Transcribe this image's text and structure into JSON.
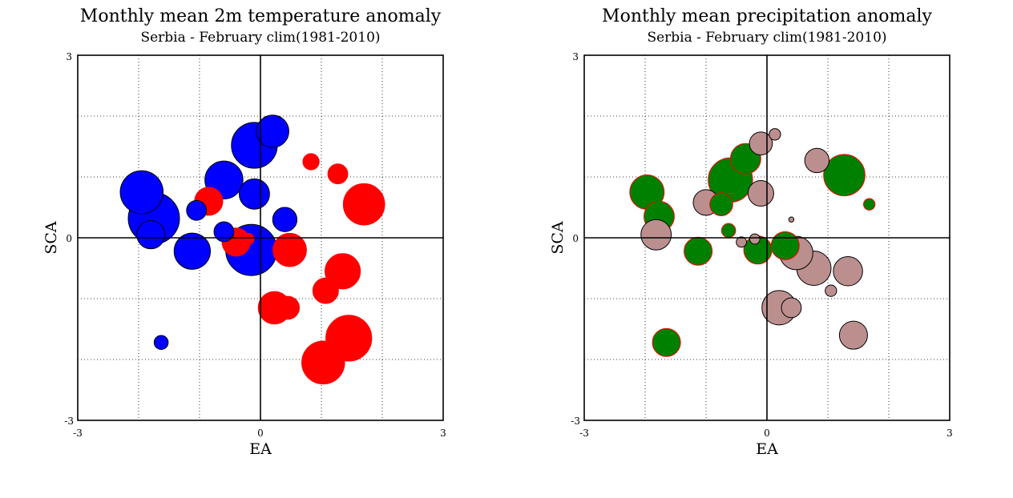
{
  "chart_data": [
    {
      "type": "scatter",
      "title": "Monthly mean 2m temperature anomaly",
      "subtitle": "Serbia - February  clim(1981-2010)",
      "xlabel": "EA",
      "ylabel": "SCA",
      "xlim": [
        -3,
        3
      ],
      "ylim": [
        -3,
        3
      ],
      "x_ticks": [
        "-3",
        "0",
        "3"
      ],
      "y_ticks": [
        "3",
        "0",
        "-3"
      ],
      "grid": true,
      "colors": {
        "negative": "#0000ff",
        "positive": "#ff0000"
      },
      "points": [
        {
          "x": 0.2,
          "y": 1.75,
          "size": 0.8,
          "sign": "negative"
        },
        {
          "x": -0.1,
          "y": 1.52,
          "size": 1.6,
          "sign": "negative"
        },
        {
          "x": -0.6,
          "y": 0.95,
          "size": 1.1,
          "sign": "negative"
        },
        {
          "x": -1.95,
          "y": 0.75,
          "size": 1.4,
          "sign": "negative"
        },
        {
          "x": -0.1,
          "y": 0.72,
          "size": 0.7,
          "sign": "negative"
        },
        {
          "x": -1.75,
          "y": 0.32,
          "size": 2.0,
          "sign": "negative"
        },
        {
          "x": -1.8,
          "y": 0.05,
          "size": 0.6,
          "sign": "negative"
        },
        {
          "x": -1.05,
          "y": 0.45,
          "size": 0.3,
          "sign": "negative"
        },
        {
          "x": 0.4,
          "y": 0.3,
          "size": 0.45,
          "sign": "negative"
        },
        {
          "x": -0.6,
          "y": 0.1,
          "size": 0.3,
          "sign": "negative"
        },
        {
          "x": -1.12,
          "y": -0.22,
          "size": 1.0,
          "sign": "negative"
        },
        {
          "x": -0.15,
          "y": -0.2,
          "size": 2.0,
          "sign": "negative"
        },
        {
          "x": -1.63,
          "y": -1.72,
          "size": 0.15,
          "sign": "negative"
        },
        {
          "x": 0.83,
          "y": 1.25,
          "size": 0.2,
          "sign": "positive"
        },
        {
          "x": 1.27,
          "y": 1.05,
          "size": 0.3,
          "sign": "positive"
        },
        {
          "x": 1.7,
          "y": 0.55,
          "size": 1.3,
          "sign": "positive"
        },
        {
          "x": -0.85,
          "y": 0.6,
          "size": 0.6,
          "sign": "positive"
        },
        {
          "x": -0.4,
          "y": -0.07,
          "size": 0.6,
          "sign": "positive"
        },
        {
          "x": -0.2,
          "y": -0.02,
          "size": 0.1,
          "sign": "positive"
        },
        {
          "x": 0.48,
          "y": -0.2,
          "size": 0.85,
          "sign": "positive"
        },
        {
          "x": 1.35,
          "y": -0.55,
          "size": 0.95,
          "sign": "positive"
        },
        {
          "x": 1.07,
          "y": -0.87,
          "size": 0.5,
          "sign": "positive"
        },
        {
          "x": 0.23,
          "y": -1.15,
          "size": 0.8,
          "sign": "positive"
        },
        {
          "x": 0.45,
          "y": -1.15,
          "size": 0.4,
          "sign": "positive"
        },
        {
          "x": 1.45,
          "y": -1.65,
          "size": 1.6,
          "sign": "positive"
        },
        {
          "x": 1.03,
          "y": -2.05,
          "size": 1.4,
          "sign": "positive"
        }
      ]
    },
    {
      "type": "scatter",
      "title": "Monthly mean precipitation anomaly",
      "subtitle": "Serbia - February  clim(1981-2010)",
      "xlabel": "EA",
      "ylabel": "SCA",
      "xlim": [
        -3,
        3
      ],
      "ylim": [
        -3,
        3
      ],
      "x_ticks": [
        "-3",
        "0",
        "3"
      ],
      "y_ticks": [
        "3",
        "0",
        "-3"
      ],
      "grid": true,
      "colors": {
        "positive": "#008000",
        "negative": "#bc8f8f"
      },
      "points": [
        {
          "x": 0.13,
          "y": 1.7,
          "size": 0.1,
          "sign": "negative"
        },
        {
          "x": -0.1,
          "y": 1.55,
          "size": 0.4,
          "sign": "negative"
        },
        {
          "x": -0.35,
          "y": 1.3,
          "size": 0.7,
          "sign": "positive"
        },
        {
          "x": -0.6,
          "y": 0.95,
          "size": 1.5,
          "sign": "positive"
        },
        {
          "x": 0.82,
          "y": 1.27,
          "size": 0.45,
          "sign": "negative"
        },
        {
          "x": 1.27,
          "y": 1.03,
          "size": 1.3,
          "sign": "positive"
        },
        {
          "x": -1.97,
          "y": 0.75,
          "size": 0.9,
          "sign": "positive"
        },
        {
          "x": -0.1,
          "y": 0.73,
          "size": 0.5,
          "sign": "negative"
        },
        {
          "x": -1.0,
          "y": 0.58,
          "size": 0.5,
          "sign": "negative"
        },
        {
          "x": -0.75,
          "y": 0.55,
          "size": 0.4,
          "sign": "positive"
        },
        {
          "x": 1.68,
          "y": 0.55,
          "size": 0.1,
          "sign": "positive"
        },
        {
          "x": 0.4,
          "y": 0.3,
          "size": 0.02,
          "sign": "negative"
        },
        {
          "x": -1.77,
          "y": 0.35,
          "size": 0.7,
          "sign": "positive"
        },
        {
          "x": -1.82,
          "y": 0.05,
          "size": 0.7,
          "sign": "negative"
        },
        {
          "x": -0.63,
          "y": 0.12,
          "size": 0.15,
          "sign": "positive"
        },
        {
          "x": -0.42,
          "y": -0.07,
          "size": 0.08,
          "sign": "negative"
        },
        {
          "x": -0.2,
          "y": -0.02,
          "size": 0.08,
          "sign": "negative"
        },
        {
          "x": -1.13,
          "y": -0.22,
          "size": 0.6,
          "sign": "positive"
        },
        {
          "x": -0.15,
          "y": -0.2,
          "size": 0.6,
          "sign": "positive"
        },
        {
          "x": 0.3,
          "y": -0.13,
          "size": 0.6,
          "sign": "positive"
        },
        {
          "x": 0.48,
          "y": -0.25,
          "size": 0.85,
          "sign": "negative"
        },
        {
          "x": 0.77,
          "y": -0.5,
          "size": 0.9,
          "sign": "negative"
        },
        {
          "x": 1.33,
          "y": -0.55,
          "size": 0.65,
          "sign": "negative"
        },
        {
          "x": 1.05,
          "y": -0.87,
          "size": 0.1,
          "sign": "negative"
        },
        {
          "x": 0.2,
          "y": -1.15,
          "size": 0.9,
          "sign": "negative"
        },
        {
          "x": 0.4,
          "y": -1.15,
          "size": 0.3,
          "sign": "negative"
        },
        {
          "x": 1.42,
          "y": -1.6,
          "size": 0.6,
          "sign": "negative"
        },
        {
          "x": -1.65,
          "y": -1.72,
          "size": 0.6,
          "sign": "positive"
        }
      ]
    }
  ]
}
